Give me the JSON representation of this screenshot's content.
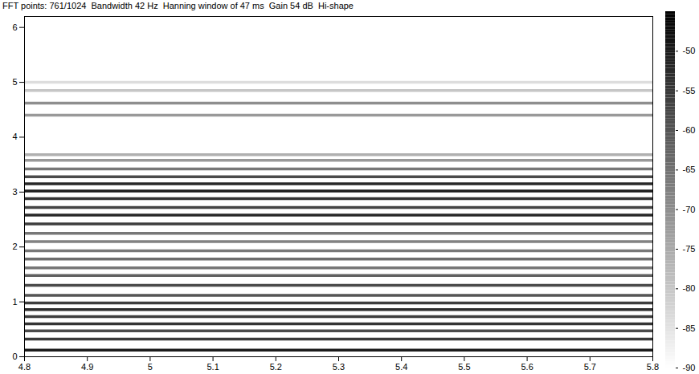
{
  "chart_data": {
    "type": "spectrogram",
    "title": "FFT points: 761/1024  Bandwidth 42 Hz  Hanning window of 47 ms  Gain 54 dB  Hi-shape",
    "xlim": [
      4.8,
      5.8
    ],
    "xticks": [
      4.8,
      4.9,
      5,
      5.1,
      5.2,
      5.3,
      5.4,
      5.5,
      5.6,
      5.7,
      5.8
    ],
    "ylim": [
      0,
      6.2
    ],
    "yticks": [
      0,
      1,
      2,
      3,
      4,
      5,
      6
    ],
    "harmonics": {
      "frequency": [
        0.12,
        0.32,
        0.47,
        0.6,
        0.73,
        0.86,
        0.98,
        1.12,
        1.3,
        1.48,
        1.62,
        1.78,
        1.93,
        2.1,
        2.25,
        2.42,
        2.58,
        2.72,
        2.88,
        3.02,
        3.15,
        3.28,
        3.42,
        3.58,
        3.68,
        4.4,
        4.62,
        4.85,
        5.0
      ],
      "level": [
        -50,
        -55,
        -58,
        -54,
        -56,
        -53,
        -56,
        -60,
        -58,
        -62,
        -66,
        -64,
        -66,
        -68,
        -66,
        -56,
        -52,
        -57,
        -54,
        -50,
        -52,
        -58,
        -66,
        -72,
        -76,
        -72,
        -70,
        -80,
        -84
      ]
    },
    "colorbar": {
      "range": [
        -90,
        -45
      ],
      "ticks": [
        -50,
        -55,
        -60,
        -65,
        -70,
        -75,
        -80,
        -85,
        -90
      ]
    }
  }
}
